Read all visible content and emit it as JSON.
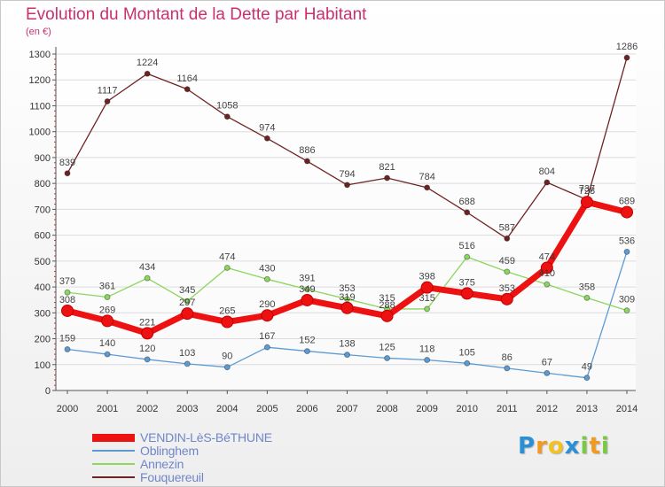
{
  "chart_data": {
    "type": "line",
    "title": "Evolution du Montant de la Dette par Habitant",
    "unit_label": "(en €)",
    "x": [
      "2000",
      "2001",
      "2002",
      "2003",
      "2004",
      "2005",
      "2006",
      "2007",
      "2008",
      "2009",
      "2010",
      "2011",
      "2012",
      "2013",
      "2014"
    ],
    "ylim": [
      0,
      1300
    ],
    "yticks": [
      0,
      100,
      200,
      300,
      400,
      500,
      600,
      700,
      800,
      900,
      1000,
      1100,
      1200,
      1300
    ],
    "grid": true,
    "series": [
      {
        "name": "VENDIN-LèS-BéTHUNE",
        "color": "#ee1111",
        "values": [
          308,
          269,
          221,
          297,
          265,
          290,
          349,
          319,
          288,
          398,
          375,
          353,
          474,
          728,
          689
        ],
        "emphasis": true
      },
      {
        "name": "Oblinghem",
        "color": "#5d9bd3",
        "values": [
          159,
          140,
          120,
          103,
          90,
          167,
          152,
          138,
          125,
          118,
          105,
          86,
          67,
          49,
          536
        ]
      },
      {
        "name": "Annezin",
        "color": "#8bd65e",
        "values": [
          379,
          361,
          434,
          345,
          474,
          430,
          391,
          353,
          315,
          315,
          516,
          459,
          410,
          358,
          309
        ]
      },
      {
        "name": "Fouquereuil",
        "color": "#6e2323",
        "values": [
          839,
          1117,
          1224,
          1164,
          1058,
          974,
          886,
          794,
          821,
          784,
          688,
          587,
          804,
          737,
          1286
        ]
      }
    ]
  },
  "logo": {
    "letters": [
      "P",
      "r",
      "o",
      "x",
      "i",
      "t",
      "i"
    ],
    "colors": [
      "#2a8fd6",
      "#f29a1f",
      "#f2c21f",
      "#2a8fd6",
      "#7ac943",
      "#f29a1f",
      "#7ac943"
    ]
  }
}
